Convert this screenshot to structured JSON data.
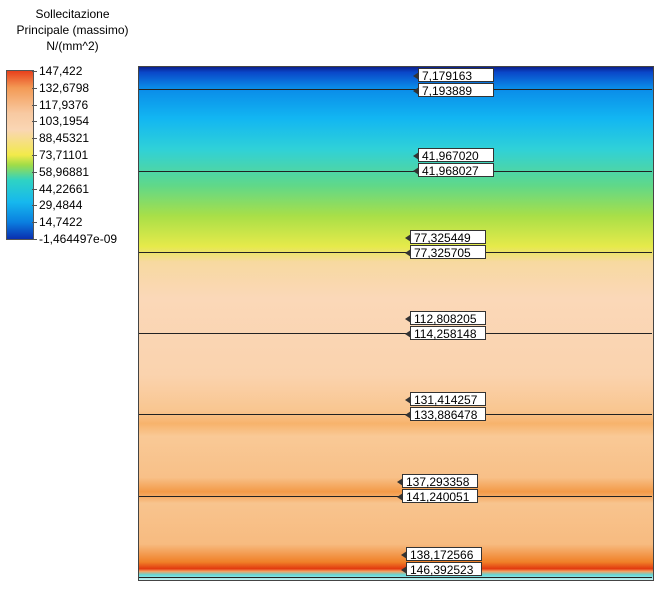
{
  "legend": {
    "title": [
      "Sollecitazione",
      "Principale (massimo)",
      "N/(mm^2)"
    ],
    "labels": [
      "147,422",
      "132,6798",
      "117,9376",
      "103,1954",
      "88,45321",
      "73,71101",
      "58,96881",
      "44,22661",
      "29,4844",
      "14,7422",
      "-1,464497e-09"
    ]
  },
  "probes": [
    [
      "7,179163",
      "7,193889"
    ],
    [
      "41,967020",
      "41,968027"
    ],
    [
      "77,325449",
      "77,325705"
    ],
    [
      "112,808205",
      "114,258148"
    ],
    [
      "131,414257",
      "133,886478"
    ],
    [
      "137,293358",
      "141,240051"
    ],
    [
      "138,172566",
      "146,392523"
    ]
  ]
}
